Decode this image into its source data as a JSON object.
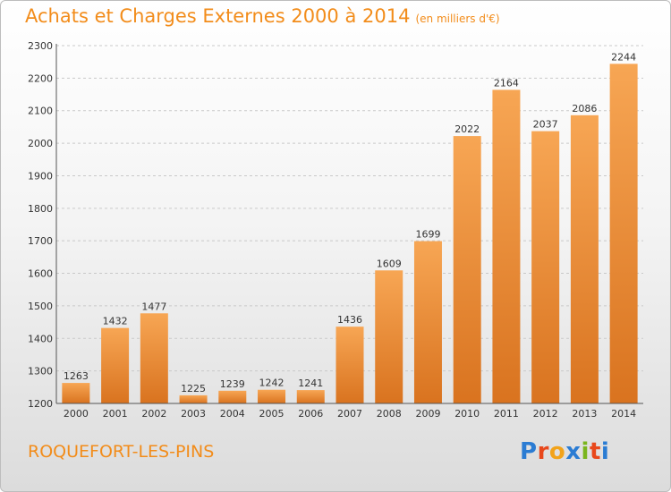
{
  "title": {
    "main": "Achats et Charges Externes 2000 à 2014",
    "sub": "(en milliers d'€)"
  },
  "location": "ROQUEFORT-LES-PINS",
  "logo": {
    "letters": [
      {
        "ch": "P",
        "color": "#2b7cd3"
      },
      {
        "ch": "r",
        "color": "#e8481c"
      },
      {
        "ch": "o",
        "color": "#f2a31a"
      },
      {
        "ch": "x",
        "color": "#2b7cd3"
      },
      {
        "ch": "i",
        "color": "#7ab51d"
      },
      {
        "ch": "t",
        "color": "#e8481c"
      },
      {
        "ch": "i",
        "color": "#2b7cd3"
      }
    ]
  },
  "colors": {
    "bar_light": "#f7a654",
    "bar_dark": "#d9731f",
    "grid": "#c9c9c9",
    "accent": "#f28c1a"
  },
  "chart_data": {
    "type": "bar",
    "categories": [
      "2000",
      "2001",
      "2002",
      "2003",
      "2004",
      "2005",
      "2006",
      "2007",
      "2008",
      "2009",
      "2010",
      "2011",
      "2012",
      "2013",
      "2014"
    ],
    "values": [
      1263,
      1432,
      1477,
      1225,
      1239,
      1242,
      1241,
      1436,
      1609,
      1699,
      2022,
      2164,
      2037,
      2086,
      2244
    ],
    "ylim": [
      1200,
      2300
    ],
    "yticks": [
      1200,
      1300,
      1400,
      1500,
      1600,
      1700,
      1800,
      1900,
      2000,
      2100,
      2200,
      2300
    ],
    "grid": true,
    "legend": "none"
  }
}
